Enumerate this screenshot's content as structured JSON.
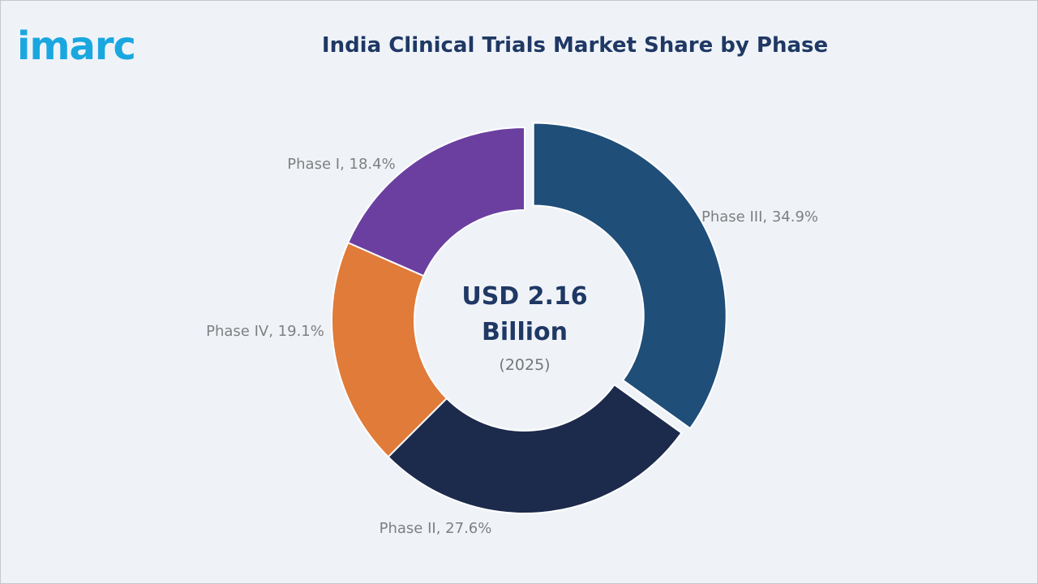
{
  "logo": {
    "text": "imarc"
  },
  "chart_data": {
    "type": "pie",
    "title": "India Clinical Trials Market Share by Phase",
    "donut": true,
    "center": {
      "line1": "USD 2.16",
      "line2": "Billion",
      "line3": "(2025)"
    },
    "slices": [
      {
        "name": "Phase III",
        "value": 34.9,
        "label": "Phase III, 34.9%",
        "color": "#1f4e79",
        "exploded": true
      },
      {
        "name": "Phase II",
        "value": 27.6,
        "label": "Phase II, 27.6%",
        "color": "#1c2a4c",
        "exploded": false
      },
      {
        "name": "Phase IV",
        "value": 19.1,
        "label": "Phase IV, 19.1%",
        "color": "#e07b39",
        "exploded": false
      },
      {
        "name": "Phase I",
        "value": 18.4,
        "label": "Phase I, 18.4%",
        "color": "#6b3fa0",
        "exploded": false
      }
    ],
    "legend": "none"
  },
  "colors": {
    "background": "#eff3f8",
    "title": "#1f3864",
    "label": "#7f7f7f",
    "logo": "#1aa7e0"
  }
}
